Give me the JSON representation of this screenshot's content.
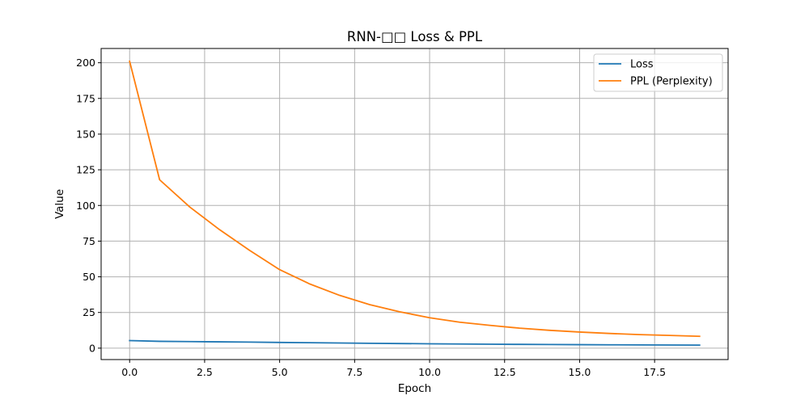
{
  "chart_data": {
    "type": "line",
    "title": "RNN-□□ Loss & PPL",
    "xlabel": "Epoch",
    "ylabel": "Value",
    "xlim": [
      -0.95,
      19.95
    ],
    "ylim": [
      -8,
      210
    ],
    "xticks": [
      0.0,
      2.5,
      5.0,
      7.5,
      10.0,
      12.5,
      15.0,
      17.5
    ],
    "xtick_labels": [
      "0.0",
      "2.5",
      "5.0",
      "7.5",
      "10.0",
      "12.5",
      "15.0",
      "17.5"
    ],
    "yticks": [
      0,
      25,
      50,
      75,
      100,
      125,
      150,
      175,
      200
    ],
    "ytick_labels": [
      "0",
      "25",
      "50",
      "75",
      "100",
      "125",
      "150",
      "175",
      "200"
    ],
    "grid": true,
    "legend_position": "top-right",
    "x": [
      0,
      1,
      2,
      3,
      4,
      5,
      6,
      7,
      8,
      9,
      10,
      11,
      12,
      13,
      14,
      15,
      16,
      17,
      18,
      19
    ],
    "series": [
      {
        "name": "Loss",
        "color": "#1f77b4",
        "values": [
          5.3,
          4.77,
          4.59,
          4.42,
          4.23,
          4.01,
          3.81,
          3.61,
          3.41,
          3.23,
          3.06,
          2.9,
          2.77,
          2.64,
          2.53,
          2.43,
          2.34,
          2.26,
          2.19,
          2.12
        ]
      },
      {
        "name": "PPL (Perplexity)",
        "color": "#ff7f0e",
        "values": [
          201,
          118,
          99,
          83,
          68.5,
          55,
          45,
          37,
          30.5,
          25.5,
          21.3,
          18.2,
          16,
          14,
          12.5,
          11.3,
          10.3,
          9.5,
          8.9,
          8.3
        ]
      }
    ]
  }
}
